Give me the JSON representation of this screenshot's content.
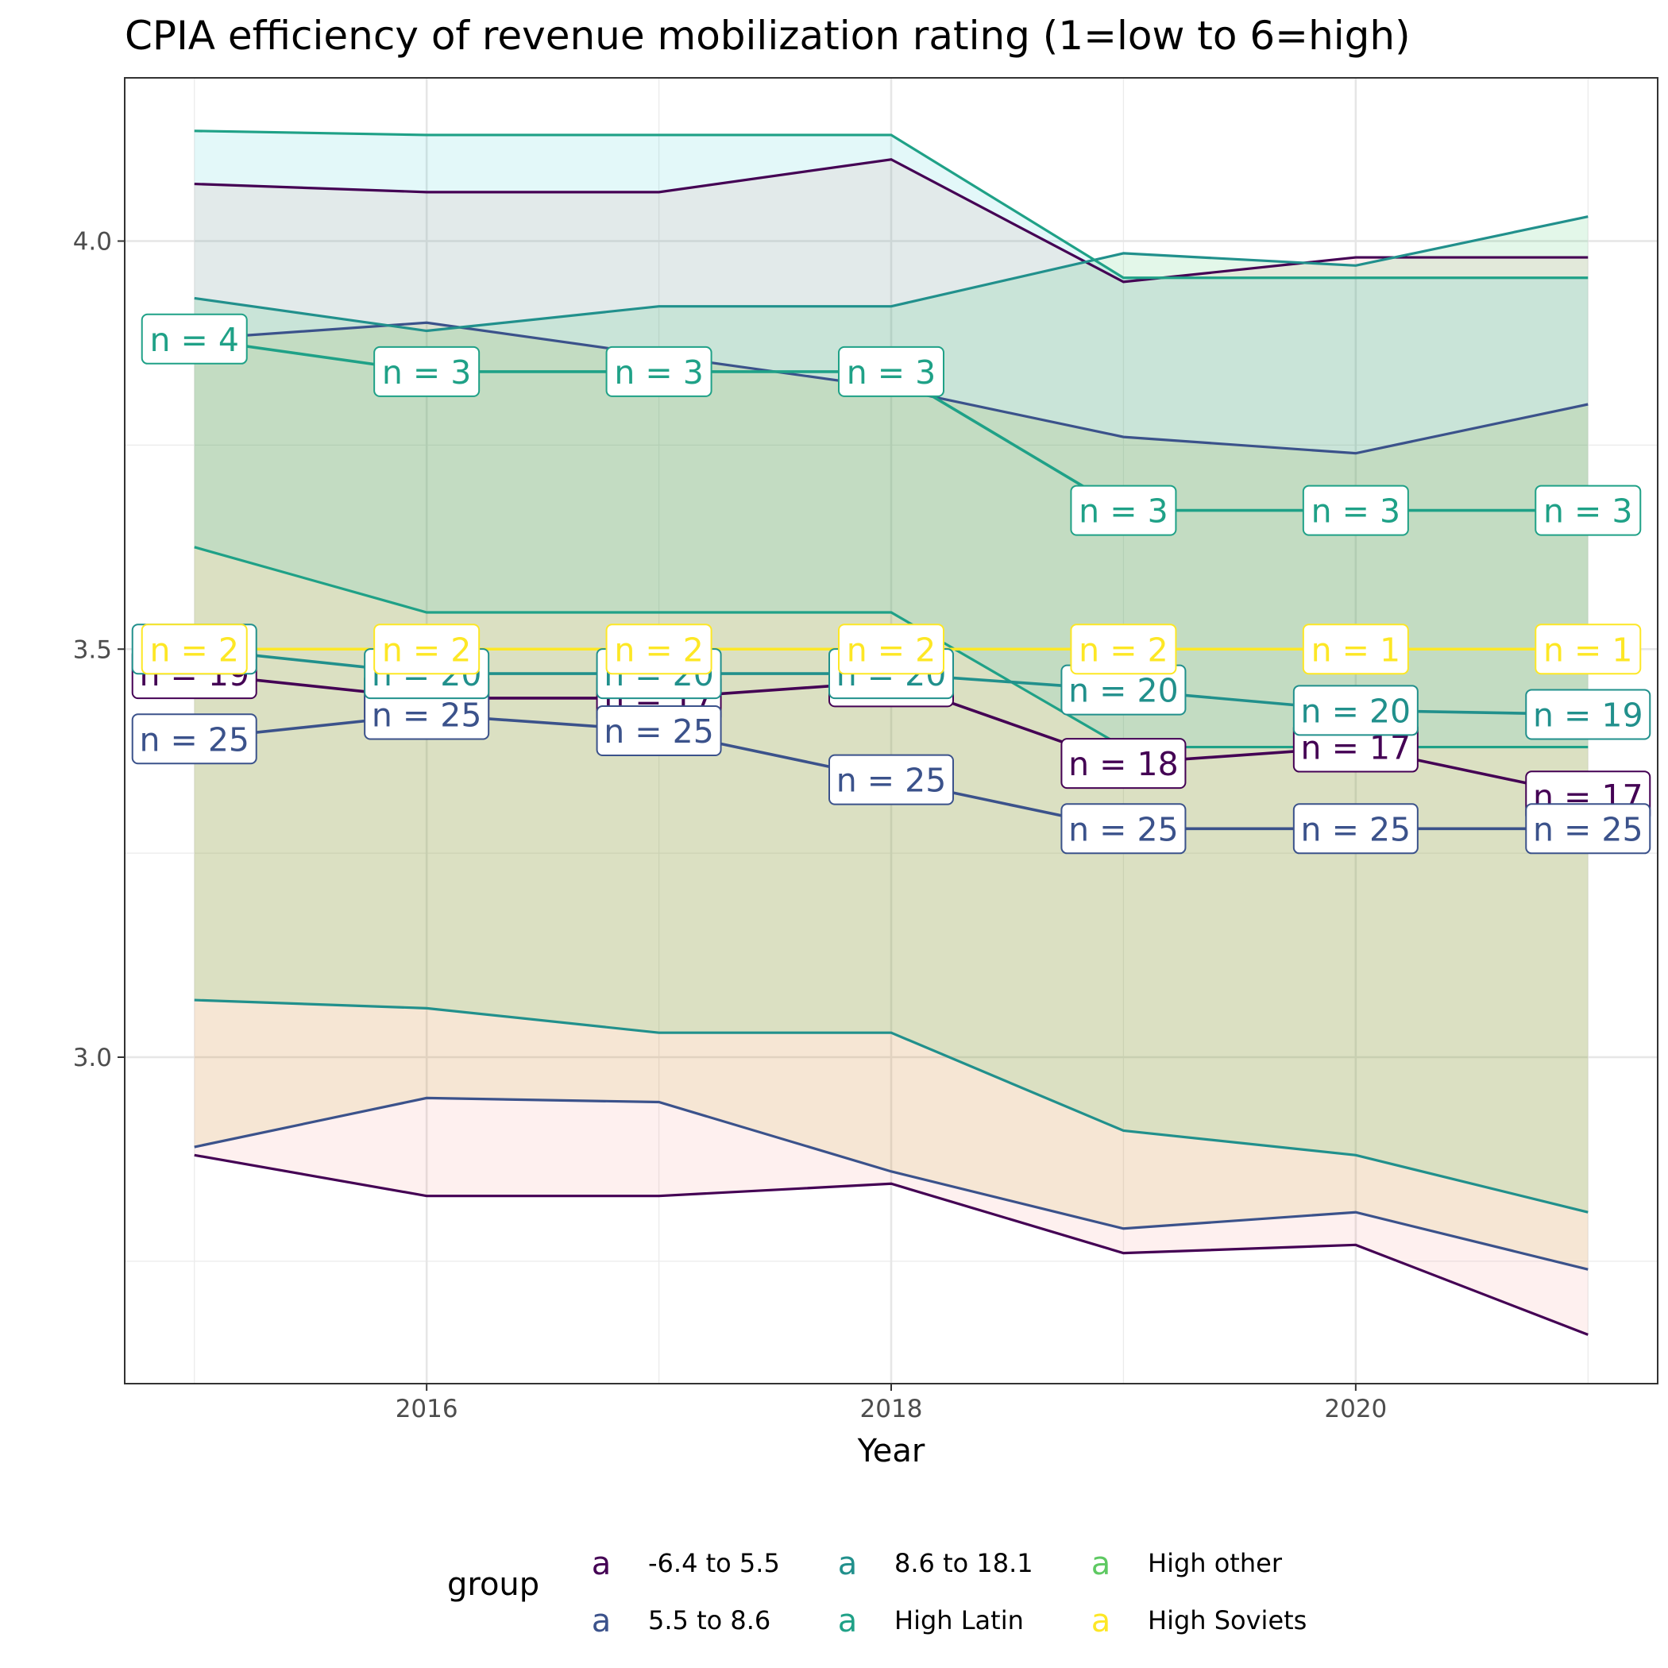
{
  "chart_data": {
    "type": "line",
    "title": "CPIA efficiency of revenue mobilization rating (1=low to 6=high)",
    "xlabel": "Year",
    "ylabel": "",
    "xlim": [
      2014.7,
      2021.3
    ],
    "ylim": [
      2.6,
      4.2
    ],
    "x_ticks": [
      2016,
      2018,
      2020
    ],
    "y_ticks": [
      3.0,
      3.5,
      4.0
    ],
    "y_tick_labels": [
      "3.0",
      "3.5",
      "4.0"
    ],
    "x": [
      2015,
      2016,
      2017,
      2018,
      2019,
      2020,
      2021
    ],
    "grid": true,
    "legend": {
      "title": "group",
      "placement": "bottom",
      "key_glyph": "a"
    },
    "series": [
      {
        "name": "-6.4 to 5.5",
        "color": "#440154",
        "mean": [
          3.47,
          3.44,
          3.44,
          3.46,
          3.36,
          3.38,
          3.32
        ],
        "lower": [
          2.88,
          2.83,
          2.83,
          2.845,
          2.76,
          2.77,
          2.66
        ],
        "upper": [
          4.07,
          4.06,
          4.06,
          4.1,
          3.95,
          3.98,
          3.98
        ],
        "n_labels": [
          "n = 19",
          "n = 20",
          "n = 17",
          "n = 18",
          "n = 18",
          "n = 17",
          "n = 17"
        ],
        "ribbon_fill": "#f8766d"
      },
      {
        "name": "5.5 to 8.6",
        "color": "#3b528b",
        "mean": [
          3.39,
          3.42,
          3.4,
          3.34,
          3.28,
          3.28,
          3.28
        ],
        "lower": [
          2.89,
          2.95,
          2.945,
          2.86,
          2.79,
          2.81,
          2.74
        ],
        "upper": [
          3.88,
          3.9,
          3.86,
          3.82,
          3.76,
          3.74,
          3.8
        ],
        "n_labels": [
          "n = 25",
          "n = 25",
          "n = 25",
          "n = 25",
          "n = 25",
          "n = 25",
          "n = 25"
        ],
        "ribbon_fill": "#b79f00"
      },
      {
        "name": "8.6 to 18.1",
        "color": "#21908c",
        "mean": [
          3.5,
          3.47,
          3.47,
          3.47,
          3.45,
          3.425,
          3.42
        ],
        "lower": [
          3.07,
          3.06,
          3.03,
          3.03,
          2.91,
          2.88,
          2.81
        ],
        "upper": [
          3.93,
          3.89,
          3.92,
          3.92,
          3.985,
          3.97,
          4.03
        ],
        "n_labels": [
          "n = 20",
          "n = 20",
          "n = 20",
          "n = 20",
          "n = 20",
          "n = 20",
          "n = 19"
        ],
        "ribbon_fill": "#00ba38"
      },
      {
        "name": "High Latin",
        "color": "#1fa187",
        "mean": [
          3.88,
          3.84,
          3.84,
          3.84,
          3.67,
          3.67,
          3.67
        ],
        "lower": [
          3.625,
          3.545,
          3.545,
          3.545,
          3.38,
          3.38,
          3.38
        ],
        "upper": [
          4.135,
          4.13,
          4.13,
          4.13,
          3.955,
          3.955,
          3.955
        ],
        "n_labels": [
          "n = 4",
          "n = 3",
          "n = 3",
          "n = 3",
          "n = 3",
          "n = 3",
          "n = 3"
        ],
        "ribbon_fill": "#00bfc4"
      },
      {
        "name": "High other",
        "color": "#5ec962",
        "mean": [],
        "n_labels": []
      },
      {
        "name": "High Soviets",
        "color": "#fde725",
        "mean": [
          3.5,
          3.5,
          3.5,
          3.5,
          3.5,
          3.5,
          3.5
        ],
        "n_labels": [
          "n = 2",
          "n = 2",
          "n = 2",
          "n = 2",
          "n = 2",
          "n = 1",
          "n = 1"
        ]
      }
    ]
  }
}
